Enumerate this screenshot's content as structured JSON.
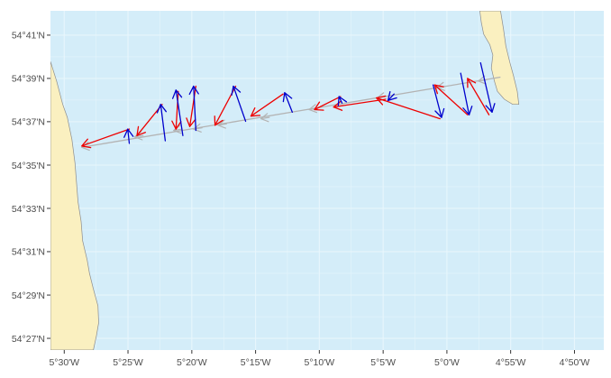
{
  "chart_data": {
    "type": "map",
    "title": "",
    "xlabel": "",
    "ylabel": "",
    "xlim": [
      -5.518,
      -4.795
    ],
    "ylim": [
      54.441,
      54.702
    ],
    "grid": true,
    "legend": "none",
    "x_ticks": [
      {
        "value": -5.5,
        "label": "5°30'W"
      },
      {
        "value": -5.4167,
        "label": "5°25'W"
      },
      {
        "value": -5.3333,
        "label": "5°20'W"
      },
      {
        "value": -5.25,
        "label": "5°15'W"
      },
      {
        "value": -5.1667,
        "label": "5°10'W"
      },
      {
        "value": -5.0833,
        "label": "5°5'W"
      },
      {
        "value": -5.0,
        "label": "5°0'W"
      },
      {
        "value": -4.9167,
        "label": "4°55'W"
      },
      {
        "value": -4.8333,
        "label": "4°50'W"
      }
    ],
    "y_ticks": [
      {
        "value": 54.45,
        "label": "54°27'N"
      },
      {
        "value": 54.4833,
        "label": "54°29'N"
      },
      {
        "value": 54.5167,
        "label": "54°31'N"
      },
      {
        "value": 54.55,
        "label": "54°33'N"
      },
      {
        "value": 54.5833,
        "label": "54°35'N"
      },
      {
        "value": 54.6167,
        "label": "54°37'N"
      },
      {
        "value": 54.65,
        "label": "54°39'N"
      },
      {
        "value": 54.6833,
        "label": "54°41'N"
      }
    ],
    "colors": {
      "sea": "#d4edf9",
      "land": "#faf0c0",
      "coast": "#8c8c8c",
      "grid": "#e8f6fc",
      "track": "#b3b3b3",
      "red": "#ee0000",
      "blue": "#0000cc"
    },
    "land": [
      {
        "name": "west-coast",
        "points": [
          [
            -5.518,
            54.663
          ],
          [
            -5.51,
            54.648
          ],
          [
            -5.502,
            54.63
          ],
          [
            -5.496,
            54.62
          ],
          [
            -5.49,
            54.603
          ],
          [
            -5.486,
            54.585
          ],
          [
            -5.484,
            54.57
          ],
          [
            -5.482,
            54.555
          ],
          [
            -5.478,
            54.54
          ],
          [
            -5.476,
            54.525
          ],
          [
            -5.47,
            54.51
          ],
          [
            -5.467,
            54.5
          ],
          [
            -5.462,
            54.488
          ],
          [
            -5.456,
            54.475
          ],
          [
            -5.455,
            54.462
          ],
          [
            -5.458,
            54.452
          ],
          [
            -5.462,
            54.441
          ],
          [
            -5.518,
            54.441
          ]
        ]
      },
      {
        "name": "east-coast",
        "points": [
          [
            -4.957,
            54.702
          ],
          [
            -4.955,
            54.693
          ],
          [
            -4.952,
            54.684
          ],
          [
            -4.944,
            54.676
          ],
          [
            -4.94,
            54.668
          ],
          [
            -4.942,
            54.658
          ],
          [
            -4.938,
            54.648
          ],
          [
            -4.934,
            54.64
          ],
          [
            -4.925,
            54.634
          ],
          [
            -4.914,
            54.63
          ],
          [
            -4.906,
            54.63
          ],
          [
            -4.908,
            54.64
          ],
          [
            -4.913,
            54.652
          ],
          [
            -4.918,
            54.663
          ],
          [
            -4.923,
            54.675
          ],
          [
            -4.926,
            54.688
          ],
          [
            -4.93,
            54.702
          ]
        ]
      }
    ],
    "track": [
      [
        -5.477,
        54.597
      ],
      [
        -4.93,
        54.651
      ]
    ],
    "track_arrows": [
      {
        "from": [
          -5.466,
          54.598
        ],
        "to": [
          -5.477,
          54.597
        ]
      },
      {
        "from": [
          -5.397,
          54.606
        ],
        "to": [
          -5.408,
          54.605
        ]
      },
      {
        "from": [
          -5.346,
          54.611
        ],
        "to": [
          -5.357,
          54.61
        ]
      },
      {
        "from": [
          -5.32,
          54.612
        ],
        "to": [
          -5.331,
          54.611
        ]
      },
      {
        "from": [
          -5.288,
          54.615
        ],
        "to": [
          -5.299,
          54.614
        ]
      },
      {
        "from": [
          -5.232,
          54.62
        ],
        "to": [
          -5.243,
          54.619
        ]
      },
      {
        "from": [
          -5.169,
          54.627
        ],
        "to": [
          -5.18,
          54.626
        ]
      },
      {
        "from": [
          -5.08,
          54.636
        ],
        "to": [
          -5.091,
          54.635
        ]
      },
      {
        "from": [
          -5.002,
          54.644
        ],
        "to": [
          -5.013,
          54.643
        ]
      },
      {
        "from": [
          -4.948,
          54.649
        ],
        "to": [
          -4.959,
          54.648
        ]
      }
    ],
    "red_arrows": [
      {
        "from": [
          -5.415,
          54.611
        ],
        "to": [
          -5.477,
          54.598
        ]
      },
      {
        "from": [
          -5.372,
          54.63
        ],
        "to": [
          -5.405,
          54.606
        ]
      },
      {
        "from": [
          -5.351,
          54.64
        ],
        "to": [
          -5.354,
          54.611
        ]
      },
      {
        "from": [
          -5.328,
          54.644
        ],
        "to": [
          -5.336,
          54.613
        ]
      },
      {
        "from": [
          -5.276,
          54.644
        ],
        "to": [
          -5.303,
          54.614
        ]
      },
      {
        "from": [
          -5.214,
          54.638
        ],
        "to": [
          -5.256,
          54.621
        ]
      },
      {
        "from": [
          -5.139,
          54.636
        ],
        "to": [
          -5.173,
          54.626
        ]
      },
      {
        "from": [
          -5.08,
          54.634
        ],
        "to": [
          -5.148,
          54.628
        ]
      },
      {
        "from": [
          -5.009,
          54.619
        ],
        "to": [
          -5.092,
          54.635
        ]
      },
      {
        "from": [
          -4.973,
          54.622
        ],
        "to": [
          -5.016,
          54.645
        ]
      },
      {
        "from": [
          -4.945,
          54.622
        ],
        "to": [
          -4.973,
          54.65
        ]
      }
    ],
    "blue_arrows": [
      {
        "from": [
          -5.415,
          54.6
        ],
        "to": [
          -5.417,
          54.611
        ]
      },
      {
        "from": [
          -5.368,
          54.602
        ],
        "to": [
          -5.374,
          54.63
        ]
      },
      {
        "from": [
          -5.345,
          54.606
        ],
        "to": [
          -5.354,
          54.641
        ]
      },
      {
        "from": [
          -5.328,
          54.61
        ],
        "to": [
          -5.331,
          54.644
        ]
      },
      {
        "from": [
          -5.263,
          54.617
        ],
        "to": [
          -5.279,
          54.644
        ]
      },
      {
        "from": [
          -5.202,
          54.624
        ],
        "to": [
          -5.212,
          54.639
        ]
      },
      {
        "from": [
          -5.137,
          54.631
        ],
        "to": [
          -5.141,
          54.636
        ]
      },
      {
        "from": [
          -5.069,
          54.638
        ],
        "to": [
          -5.077,
          54.633
        ]
      },
      {
        "from": [
          -5.018,
          54.645
        ],
        "to": [
          -5.007,
          54.62
        ]
      },
      {
        "from": [
          -4.982,
          54.654
        ],
        "to": [
          -4.971,
          54.622
        ]
      },
      {
        "from": [
          -4.956,
          54.662
        ],
        "to": [
          -4.941,
          54.624
        ]
      }
    ]
  }
}
